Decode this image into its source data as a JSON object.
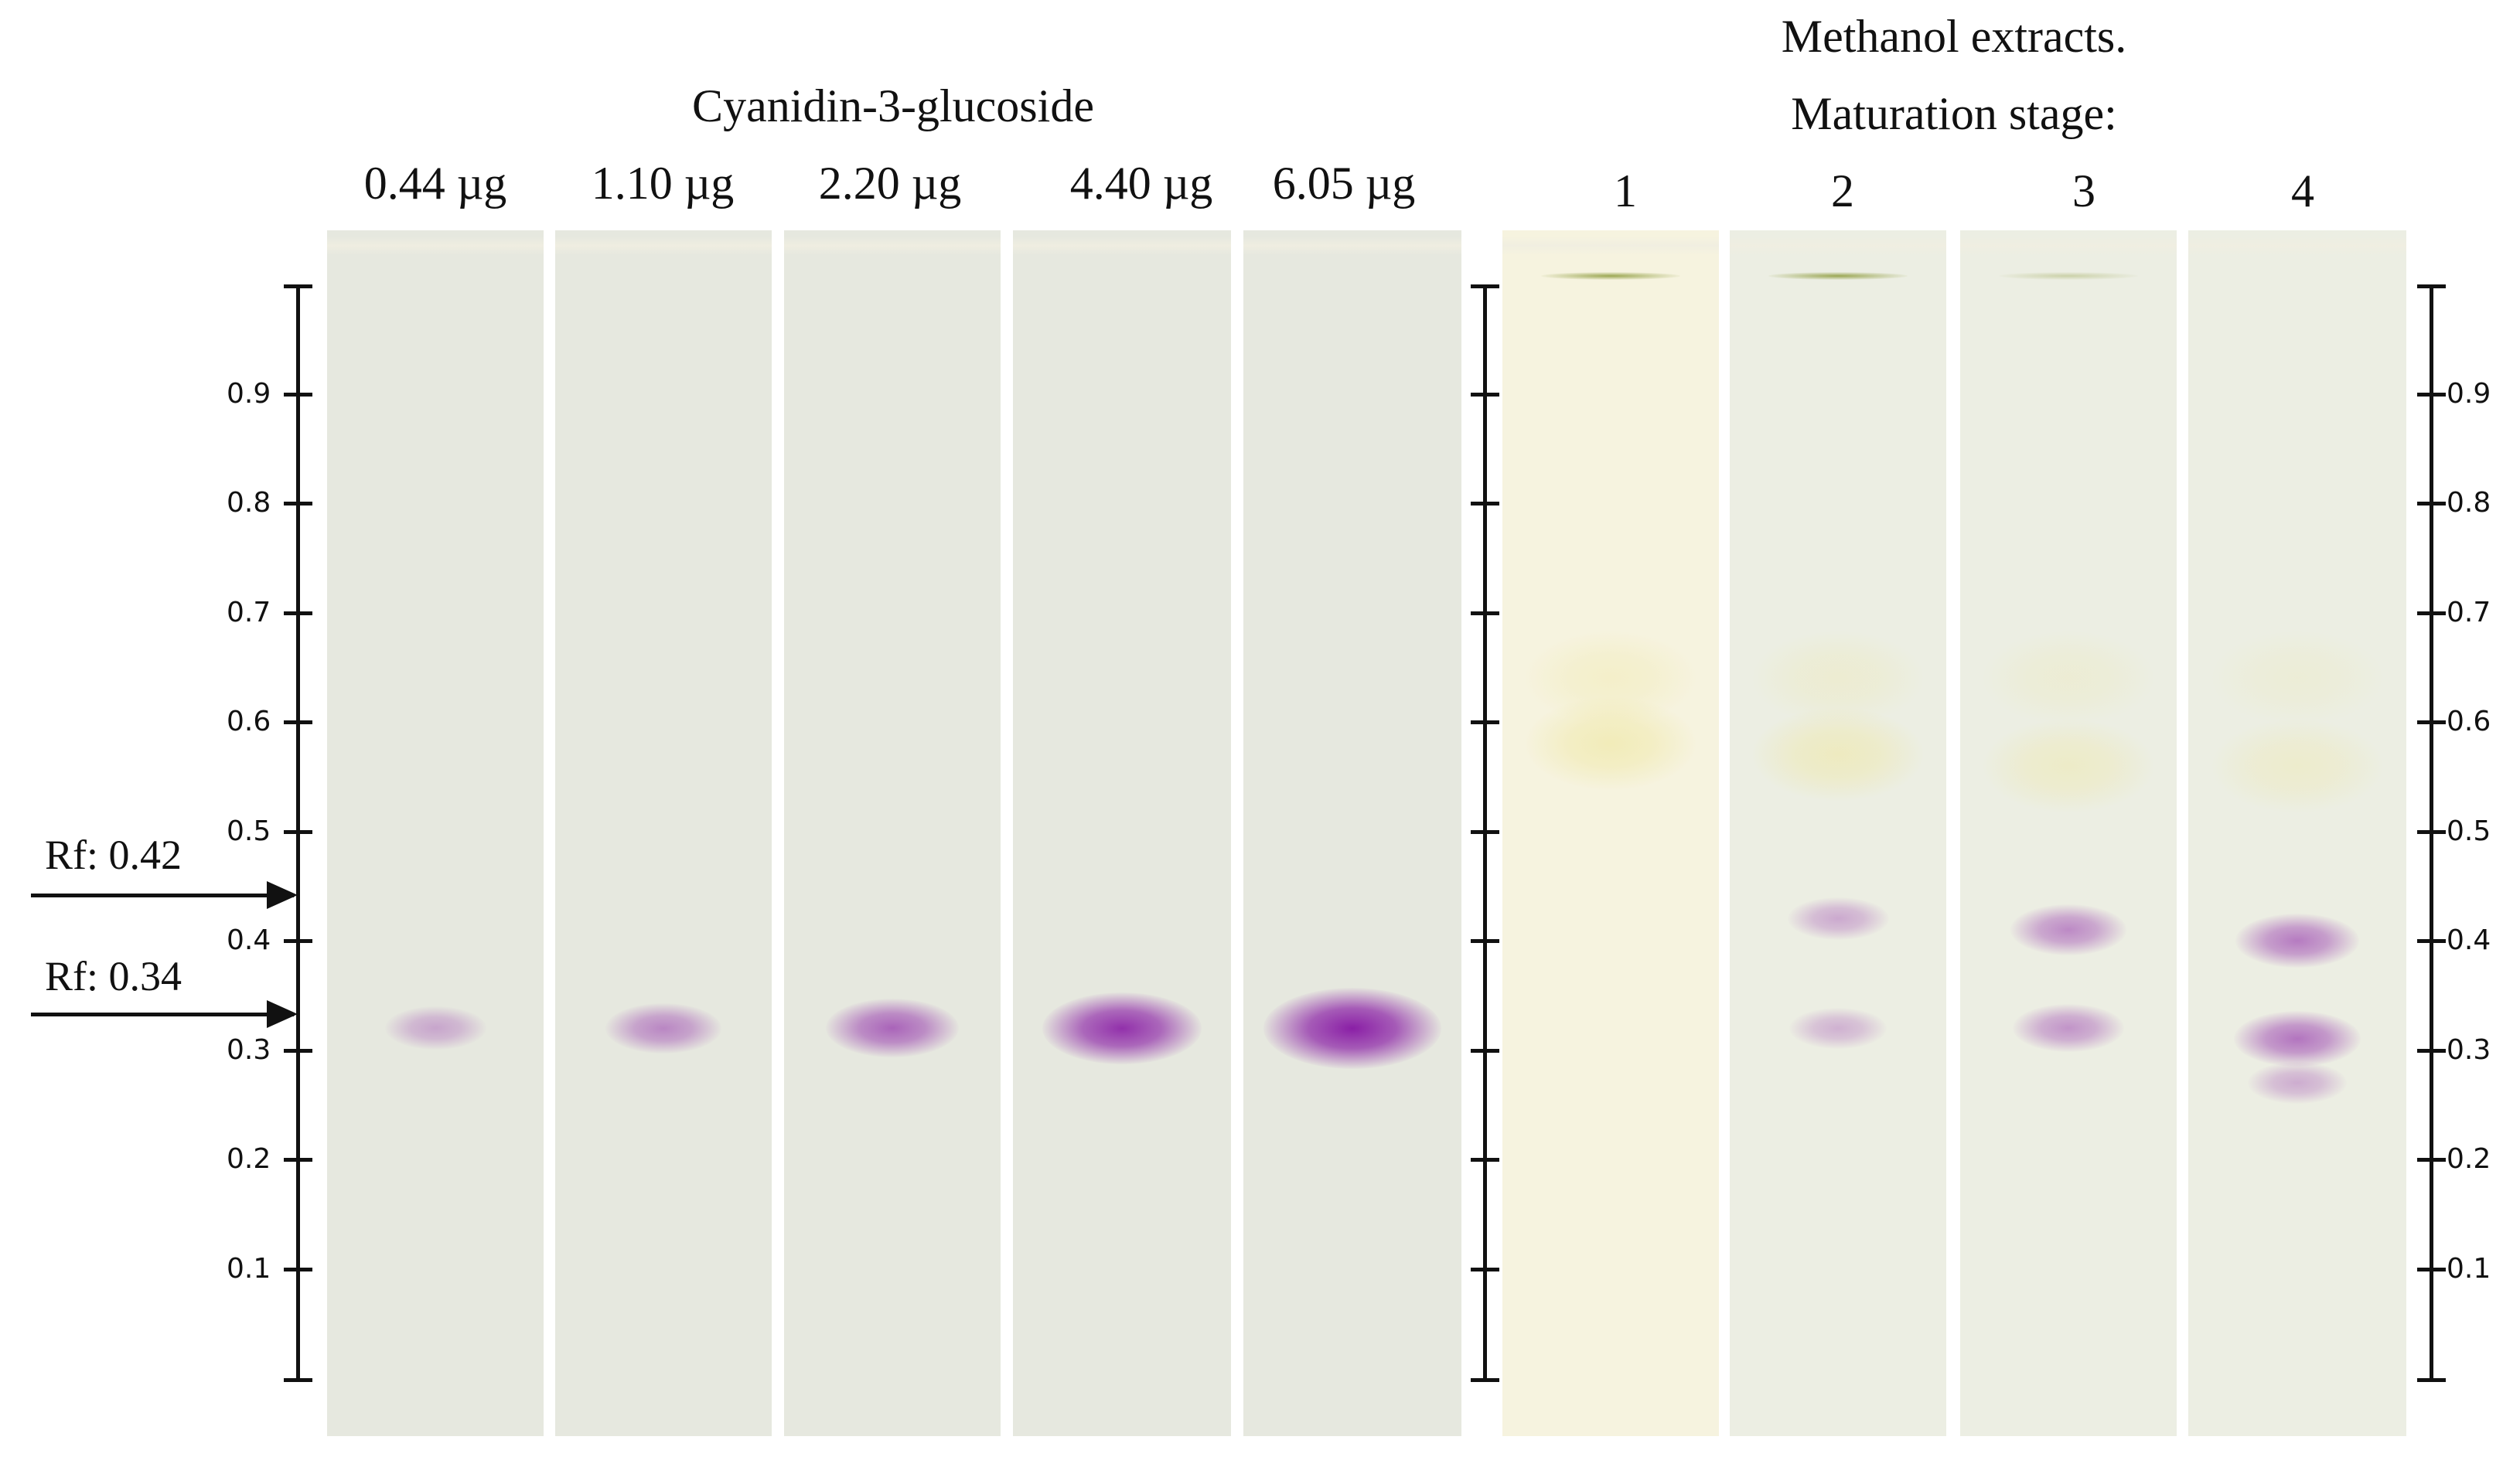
{
  "standards": {
    "title": "Cyanidin-3-glucoside",
    "lanes": [
      {
        "label": "0.44 µg"
      },
      {
        "label": "1.10 µg"
      },
      {
        "label": "2.20 µg"
      },
      {
        "label": "4.40 µg"
      },
      {
        "label": "6.05 µg"
      }
    ]
  },
  "extracts": {
    "title_line1": "Methanol extracts.",
    "title_line2": "Maturation stage:",
    "lanes": [
      {
        "label": "1"
      },
      {
        "label": "2"
      },
      {
        "label": "3"
      },
      {
        "label": "4"
      }
    ]
  },
  "scale_ticks": [
    "0.9",
    "0.8",
    "0.7",
    "0.6",
    "0.5",
    "0.4",
    "0.3",
    "0.2",
    "0.1"
  ],
  "rf_markers": [
    {
      "label": "Rf: 0.42",
      "rf": 0.42
    },
    {
      "label": "Rf: 0.34",
      "rf": 0.34
    }
  ],
  "colors": {
    "plate_left": "#e6e8df",
    "plate_extract_1": "#f6f3df",
    "plate_extract_other": "#eceee3",
    "anthocyanin": "#8a1fa6",
    "yellow_band": "#efe7a0",
    "solvent_front_green": "#8c9a3a"
  }
}
